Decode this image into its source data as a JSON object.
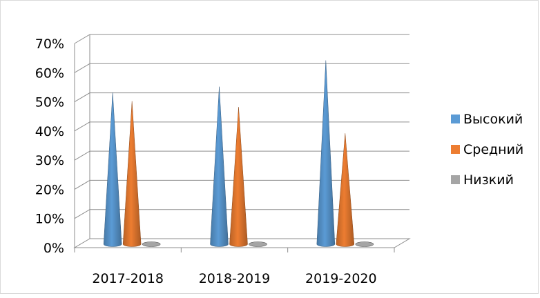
{
  "chart_data": {
    "type": "bar",
    "style": "3d-cone",
    "categories": [
      "2017-2018",
      "2018-2019",
      "2019-2020"
    ],
    "series": [
      {
        "name": "Высокий",
        "values": [
          52,
          54,
          63
        ],
        "color": "#5B9BD5"
      },
      {
        "name": "Средний",
        "values": [
          49,
          47,
          38
        ],
        "color": "#ED7D31"
      },
      {
        "name": "Низкий",
        "values": [
          0,
          0,
          0
        ],
        "color": "#A5A5A5"
      }
    ],
    "y_ticks": [
      "0%",
      "10%",
      "20%",
      "30%",
      "40%",
      "50%",
      "60%",
      "70%"
    ],
    "ylim": [
      0,
      70
    ],
    "y_unit": "%",
    "grid": true,
    "legend_position": "right"
  }
}
